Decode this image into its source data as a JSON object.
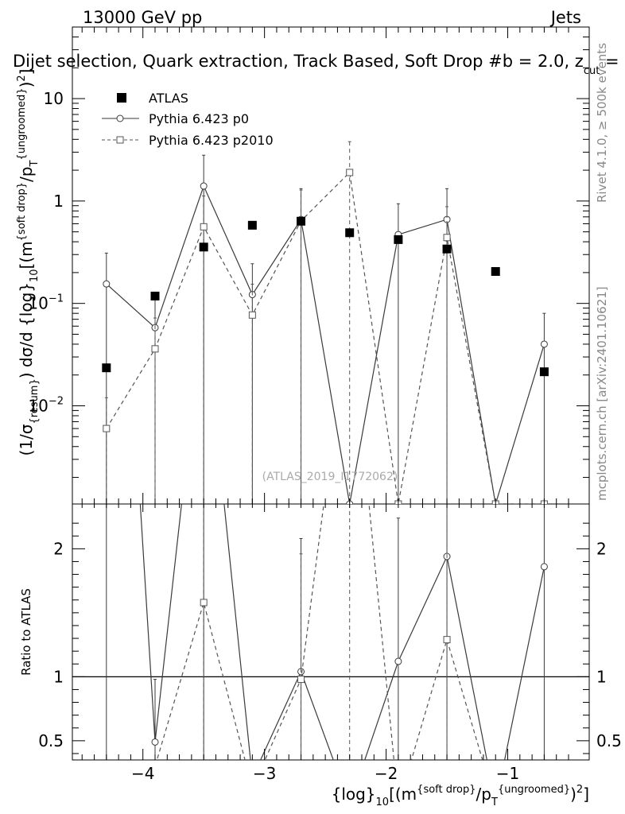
{
  "header": {
    "energy_label": "13000 GeV pp",
    "process_label": "Jets",
    "title": "Dijet selection, Quark extraction, Track Based, Soft Drop #b = 2.0, z",
    "zcut_sub": "cut",
    "zcut_suffix": " = ",
    "watermark": "(ATLAS_2019_I1772062)",
    "side_rivet": "Rivet 4.1.0, ≥ 500k events",
    "side_mcplots": "mcplots.cern.ch [arXiv:2401.10621]"
  },
  "axis_labels": {
    "y_main": {
      "p1": "(1/σ",
      "s1": "{resum}",
      "p2": ") dσ/d {log}",
      "s2": "10",
      "p3": "[(m",
      "u1": "{soft drop}",
      "p4": "/p",
      "s3": "T",
      "u2": "{ungroomed}",
      "p5": ")",
      "u3": "2",
      "p6": "]"
    },
    "y_ratio": "Ratio to ATLAS",
    "x": {
      "p1": "{log}",
      "s1": "10",
      "p2": "[(m",
      "u1": "{soft drop}",
      "p3": "/p",
      "s2": "T",
      "u2": "{ungroomed}",
      "p4": ")",
      "u3": "2",
      "p5": "]"
    }
  },
  "legend": {
    "atlas": "ATLAS",
    "p0": "Pythia 6.423 p0",
    "p2010": "Pythia 6.423 p2010"
  },
  "chart_data": {
    "type": "scatter",
    "x_range": [
      -4.58,
      -0.33
    ],
    "y_main_range_log": [
      0.0011,
      50
    ],
    "y_ratio_range": [
      0.35,
      2.35
    ],
    "x_ticks": [
      {
        "value": -4,
        "label": "−4"
      },
      {
        "value": -3,
        "label": "−3"
      },
      {
        "value": -2,
        "label": "−2"
      },
      {
        "value": -1,
        "label": "−1"
      }
    ],
    "y_main_ticks": [
      {
        "value": 10,
        "label": "10"
      },
      {
        "value": 1,
        "label": "1"
      },
      {
        "value": 0.1,
        "label": "10",
        "exp": "−1"
      },
      {
        "value": 0.01,
        "label": "10",
        "exp": "−2"
      }
    ],
    "y_ratio_ticks": [
      {
        "value": 0.5,
        "label": "0.5"
      },
      {
        "value": 1,
        "label": "1"
      },
      {
        "value": 2,
        "label": "2"
      }
    ],
    "x": [
      -4.3,
      -3.9,
      -3.5,
      -3.1,
      -2.7,
      -2.3,
      -1.9,
      -1.5,
      -1.1,
      -0.7
    ],
    "series": [
      {
        "name": "ATLAS",
        "style": "markers",
        "color": "#000000",
        "values": [
          0.0235,
          0.118,
          0.355,
          0.58,
          0.635,
          0.49,
          0.42,
          0.34,
          0.205,
          0.0215
        ]
      },
      {
        "name": "Pythia 6.423 p0",
        "style": "solid",
        "marker": "circle",
        "color": "#3a3a3a",
        "values": [
          0.155,
          0.058,
          1.4,
          0.122,
          0.66,
          0.0011,
          0.47,
          0.66,
          0.0011,
          0.04
        ],
        "err_up": [
          0.31,
          0.116,
          2.8,
          0.244,
          1.32,
          null,
          0.94,
          1.32,
          null,
          0.08
        ],
        "ratio": [
          6.6,
          0.49,
          3.9,
          0.21,
          1.04,
          0.0022,
          1.12,
          1.94,
          0.0054,
          1.86
        ],
        "ratio_err_up": [
          null,
          0.98,
          null,
          null,
          2.08,
          null,
          2.24,
          null,
          null,
          null
        ]
      },
      {
        "name": "Pythia 6.423 p2010",
        "style": "dashed",
        "marker": "square",
        "color": "#555555",
        "values": [
          0.006,
          0.036,
          0.56,
          0.077,
          0.64,
          1.9,
          0.0011,
          0.44,
          0.0011,
          0.0011
        ],
        "err_up": [
          0.012,
          0.072,
          1.12,
          0.154,
          1.28,
          3.8,
          null,
          0.88,
          null,
          null
        ],
        "ratio": [
          0.26,
          0.3,
          1.58,
          0.13,
          0.98,
          3.9,
          0.0026,
          1.29,
          0.0054,
          0.05
        ],
        "ratio_err_up": [
          null,
          null,
          null,
          null,
          1.96,
          null,
          null,
          null,
          null,
          null
        ]
      }
    ]
  }
}
